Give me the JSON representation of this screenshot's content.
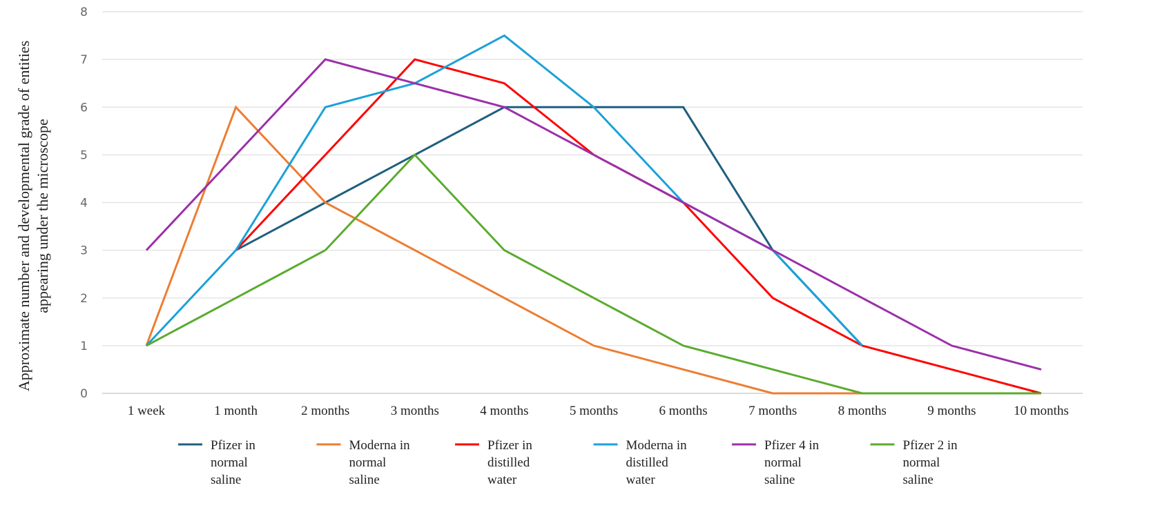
{
  "chart_data": {
    "type": "line",
    "ylabel": "Approximate number and developmental grade of entities appearing under the microscope",
    "ylabel_lines": [
      "Approximate number and developmental grade of entities",
      "appearing under the microscope"
    ],
    "xlabel": "",
    "categories": [
      "1 week",
      "1 month",
      "2 months",
      "3 months",
      "4 months",
      "5 months",
      "6 months",
      "7 months",
      "8 months",
      "9 months",
      "10 months"
    ],
    "ylim": [
      0,
      8
    ],
    "yticks": [
      0,
      1,
      2,
      3,
      4,
      5,
      6,
      7,
      8
    ],
    "grid": true,
    "legend_position": "bottom",
    "series": [
      {
        "name": "Pfizer in normal saline",
        "legend_lines": [
          "Pfizer in",
          "normal",
          "saline"
        ],
        "color": "#1f5f7f",
        "values": [
          null,
          3,
          4,
          5,
          6,
          6,
          6,
          3,
          1,
          null,
          null
        ]
      },
      {
        "name": "Moderna in normal saline",
        "legend_lines": [
          "Moderna in",
          "normal",
          "saline"
        ],
        "color": "#ed7d31",
        "values": [
          1,
          6,
          4,
          3,
          2,
          1,
          0.5,
          0,
          0,
          0,
          0
        ]
      },
      {
        "name": "Pfizer in distilled water",
        "legend_lines": [
          "Pfizer in",
          "distilled",
          "water"
        ],
        "color": "#ff0000",
        "values": [
          null,
          3,
          5,
          7,
          6.5,
          5,
          4,
          2,
          1,
          0.5,
          0
        ]
      },
      {
        "name": "Moderna in distilled water",
        "legend_lines": [
          "Moderna in",
          "distilled",
          "water"
        ],
        "color": "#1ba1d9",
        "values": [
          1,
          3,
          6,
          6.5,
          7.5,
          6,
          4,
          3,
          1,
          null,
          null
        ]
      },
      {
        "name": "Pfizer 4 in normal saline",
        "legend_lines": [
          "Pfizer 4 in",
          "normal",
          "saline"
        ],
        "color": "#9b30a8",
        "values": [
          3,
          5,
          7,
          6.5,
          6,
          5,
          4,
          3,
          2,
          1,
          0.5
        ]
      },
      {
        "name": "Pfizer 2 in normal saline",
        "legend_lines": [
          "Pfizer 2 in",
          "normal",
          "saline"
        ],
        "color": "#5aab2e",
        "values": [
          1,
          2,
          3,
          5,
          3,
          2,
          1,
          0.5,
          0,
          0,
          0
        ]
      }
    ]
  }
}
